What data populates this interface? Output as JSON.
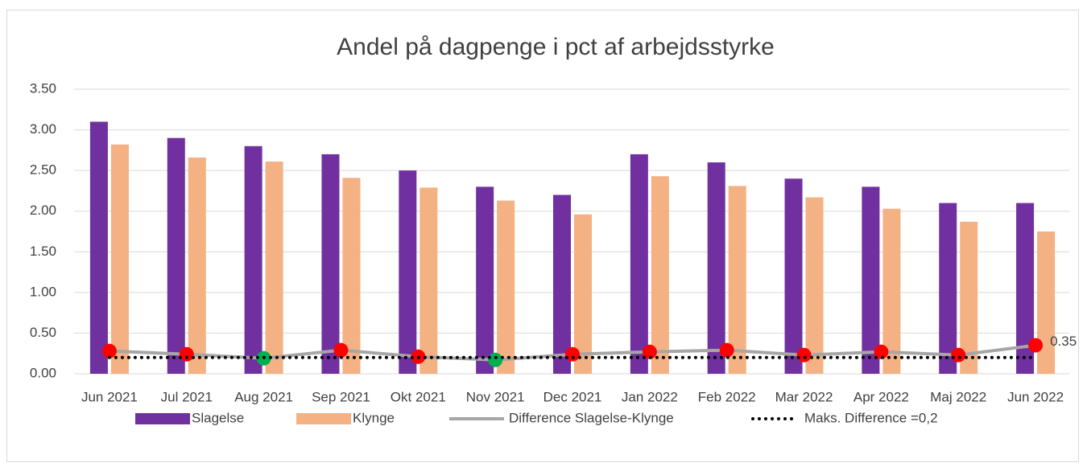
{
  "chart_data": {
    "type": "bar_line",
    "title": "Andel på dagpenge i pct af arbejdsstyrke",
    "categories": [
      "Jun 2021",
      "Jul 2021",
      "Aug 2021",
      "Sep 2021",
      "Okt 2021",
      "Nov 2021",
      "Dec 2021",
      "Jan 2022",
      "Feb 2022",
      "Mar 2022",
      "Apr 2022",
      "Maj 2022",
      "Jun 2022"
    ],
    "series": [
      {
        "name": "Slagelse",
        "kind": "bar",
        "color": "#7030a0",
        "values": [
          3.1,
          2.9,
          2.8,
          2.7,
          2.5,
          2.3,
          2.2,
          2.7,
          2.6,
          2.4,
          2.3,
          2.1,
          2.1
        ]
      },
      {
        "name": "Klynge",
        "kind": "bar",
        "color": "#f4b183",
        "values": [
          2.82,
          2.66,
          2.61,
          2.41,
          2.29,
          2.13,
          1.96,
          2.43,
          2.31,
          2.17,
          2.03,
          1.87,
          1.75
        ]
      },
      {
        "name": "Difference Slagelse-Klynge",
        "kind": "line",
        "color": "#a6a6a6",
        "marker_above_color": "#ff0000",
        "marker_below_color": "#00b050",
        "values": [
          0.28,
          0.24,
          0.19,
          0.29,
          0.21,
          0.17,
          0.24,
          0.27,
          0.29,
          0.23,
          0.27,
          0.23,
          0.35
        ],
        "value_labels": [
          null,
          null,
          null,
          null,
          null,
          null,
          null,
          null,
          null,
          null,
          null,
          null,
          "0.35"
        ]
      },
      {
        "name": "Maks. Difference =0,2",
        "kind": "dotted",
        "color": "#000000",
        "values": [
          0.2,
          0.2,
          0.2,
          0.2,
          0.2,
          0.2,
          0.2,
          0.2,
          0.2,
          0.2,
          0.2,
          0.2,
          0.2
        ]
      }
    ],
    "ylim": [
      0,
      3.5
    ],
    "yticks": [
      {
        "value": 0,
        "label": "0.00"
      },
      {
        "value": 0.5,
        "label": "0.50"
      },
      {
        "value": 1,
        "label": "1.00"
      },
      {
        "value": 1.5,
        "label": "1.50"
      },
      {
        "value": 2,
        "label": "2.00"
      },
      {
        "value": 2.5,
        "label": "2.50"
      },
      {
        "value": 3,
        "label": "3.00"
      },
      {
        "value": 3.5,
        "label": "3.50"
      }
    ],
    "grid": true,
    "legend": "bottom"
  }
}
